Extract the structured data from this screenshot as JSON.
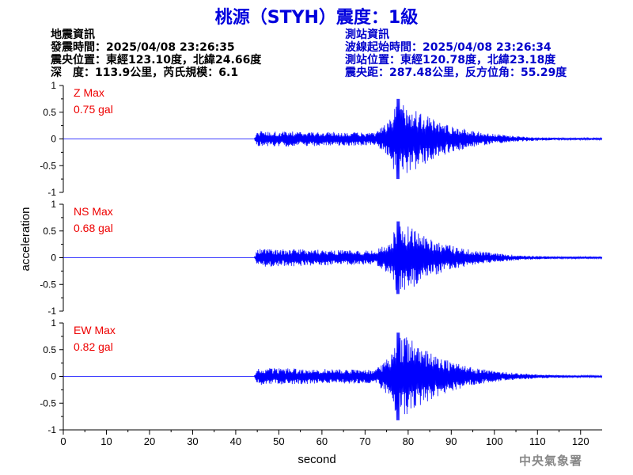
{
  "title": "桃源（STYH）震度：1級",
  "quake_info": {
    "heading": "地震資訊",
    "origin_time": "發震時間：2025/04/08 23:26:35",
    "epicenter": "震央位置：東經123.10度，北緯24.66度",
    "depth_magnitude": "深　度：113.9公里，芮氏規模：6.1"
  },
  "station_info": {
    "heading": "測站資訊",
    "arrival_time": "波線起始時間：2025/04/08 23:26:34",
    "station_location": "測站位置：東經120.78度，北緯23.18度",
    "distance_azimuth": "震央距：287.48公里，反方位角：55.29度"
  },
  "credit": "中央氣象署",
  "colors": {
    "title": "#0000dd",
    "trace": "#0000ff",
    "max_label": "#ee0000",
    "station_text": "#0000cc"
  },
  "chart_data": {
    "type": "line",
    "xlabel": "second",
    "ylabel": "acceleration",
    "xlim": [
      0,
      125
    ],
    "ylim": [
      -1,
      1
    ],
    "x_ticks": [
      "0",
      "10",
      "20",
      "30",
      "40",
      "50",
      "60",
      "70",
      "80",
      "90",
      "100",
      "110",
      "120"
    ],
    "y_ticks": [
      "1",
      "0.5",
      "0",
      "-0.5",
      "-1"
    ],
    "onset_seconds": 44.3,
    "peak_seconds": 78,
    "panels": [
      {
        "component": "Z",
        "max_label": "Z Max",
        "max_value": "0.75 gal",
        "peak": 0.75,
        "pre": 0.15,
        "seed": 11
      },
      {
        "component": "NS",
        "max_label": "NS Max",
        "max_value": "0.68 gal",
        "peak": 0.68,
        "pre": 0.17,
        "seed": 23
      },
      {
        "component": "EW",
        "max_label": "EW Max",
        "max_value": "0.82 gal",
        "peak": 0.82,
        "pre": 0.16,
        "seed": 37
      }
    ]
  }
}
